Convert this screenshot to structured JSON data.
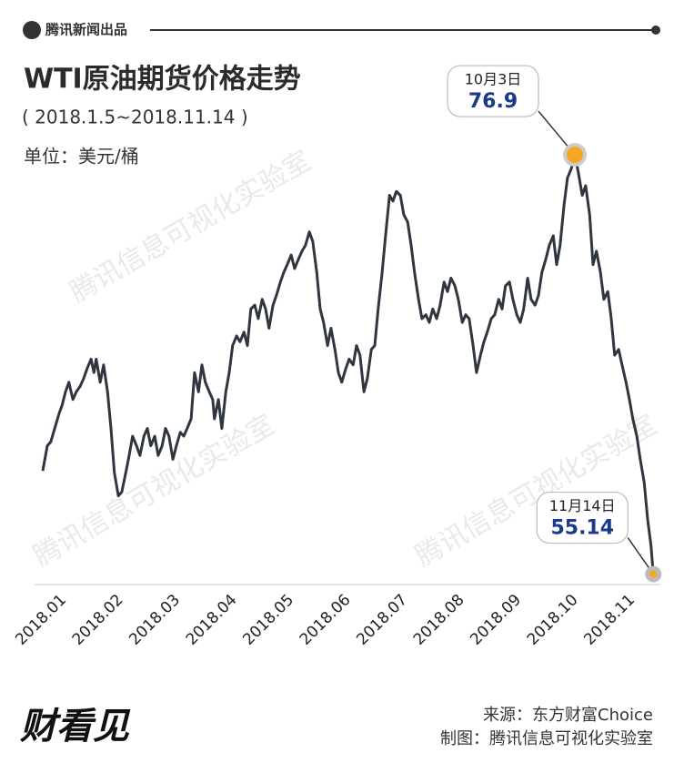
{
  "header": {
    "brand": "腾讯新闻出品"
  },
  "footer": {
    "logo": "财看见",
    "source": "来源：东方财富Choice",
    "credit": "制图：腾讯信息可视化实验室",
    "watermark": "腾讯信息可视化实验室"
  },
  "chart_data": {
    "type": "line",
    "title": "WTI原油期货价格走势",
    "subtitle": "( 2018.1.5~2018.11.14 )",
    "unit": "单位：美元/桶",
    "color": "#2f3640",
    "xlim": [
      0.6,
      11.6
    ],
    "ylim": [
      54.6,
      77.8
    ],
    "xticks": [
      {
        "value": 1,
        "label": "2018.01"
      },
      {
        "value": 2,
        "label": "2018.02"
      },
      {
        "value": 3,
        "label": "2018.03"
      },
      {
        "value": 4,
        "label": "2018.04"
      },
      {
        "value": 5,
        "label": "2018.05"
      },
      {
        "value": 6,
        "label": "2018.06"
      },
      {
        "value": 7,
        "label": "2018.07"
      },
      {
        "value": 8,
        "label": "2018.08"
      },
      {
        "value": 9,
        "label": "2018.09"
      },
      {
        "value": 10,
        "label": "2018.10"
      },
      {
        "value": 11,
        "label": "2018.11"
      }
    ],
    "x": [
      0.76,
      0.84,
      0.9,
      0.97,
      1.05,
      1.1,
      1.16,
      1.22,
      1.29,
      1.35,
      1.42,
      1.48,
      1.54,
      1.61,
      1.66,
      1.7,
      1.77,
      1.83,
      1.9,
      1.96,
      2.02,
      2.09,
      2.15,
      2.22,
      2.28,
      2.34,
      2.41,
      2.47,
      2.54,
      2.6,
      2.66,
      2.73,
      2.79,
      2.86,
      2.92,
      2.98,
      3.05,
      3.11,
      3.18,
      3.24,
      3.3,
      3.37,
      3.43,
      3.5,
      3.56,
      3.62,
      3.69,
      3.75,
      3.78,
      3.85,
      3.91,
      3.98,
      4.04,
      4.1,
      4.17,
      4.23,
      4.3,
      4.36,
      4.42,
      4.49,
      4.55,
      4.62,
      4.68,
      4.74,
      4.81,
      4.87,
      4.94,
      5.0,
      5.06,
      5.13,
      5.19,
      5.26,
      5.32,
      5.38,
      5.45,
      5.51,
      5.58,
      5.64,
      5.7,
      5.77,
      5.83,
      5.9,
      5.96,
      6.02,
      6.09,
      6.15,
      6.22,
      6.28,
      6.34,
      6.41,
      6.47,
      6.54,
      6.6,
      6.66,
      6.73,
      6.79,
      6.86,
      6.92,
      6.98,
      7.05,
      7.11,
      7.18,
      7.24,
      7.3,
      7.37,
      7.43,
      7.5,
      7.56,
      7.62,
      7.69,
      7.75,
      7.82,
      7.88,
      7.94,
      8.01,
      8.07,
      8.14,
      8.2,
      8.26,
      8.33,
      8.39,
      8.46,
      8.52,
      8.58,
      8.65,
      8.71,
      8.78,
      8.84,
      8.9,
      8.97,
      9.03,
      9.1,
      9.16,
      9.22,
      9.29,
      9.35,
      9.42,
      9.48,
      9.54,
      9.61,
      9.67,
      9.74,
      9.8,
      9.86,
      9.93,
      9.99,
      10.06,
      10.12,
      10.18,
      10.25,
      10.31,
      10.38,
      10.44,
      10.5,
      10.57,
      10.63,
      10.7,
      10.76,
      10.82,
      10.89,
      10.95,
      11.02,
      11.08,
      11.14,
      11.21,
      11.27,
      11.34,
      11.4,
      11.46,
      11.5
    ],
    "values": [
      60.5,
      61.8,
      62.0,
      62.7,
      63.5,
      63.9,
      64.6,
      65.1,
      64.2,
      64.6,
      64.9,
      65.3,
      65.8,
      66.3,
      65.6,
      66.3,
      65.1,
      66.0,
      64.6,
      62.7,
      60.4,
      59.2,
      59.4,
      60.4,
      61.3,
      62.3,
      61.8,
      61.3,
      62.3,
      62.7,
      61.8,
      62.3,
      61.3,
      61.8,
      62.7,
      62.3,
      61.1,
      61.8,
      62.5,
      62.3,
      62.7,
      63.2,
      65.6,
      64.6,
      66.0,
      65.1,
      64.6,
      64.2,
      63.2,
      64.2,
      62.7,
      64.6,
      65.6,
      67.0,
      67.5,
      67.2,
      67.7,
      67.0,
      68.9,
      69.1,
      68.4,
      69.4,
      68.9,
      67.9,
      69.1,
      69.6,
      70.3,
      70.8,
      71.2,
      71.7,
      71.0,
      71.5,
      71.9,
      72.2,
      72.9,
      72.4,
      70.8,
      68.9,
      68.2,
      67.0,
      67.9,
      66.8,
      65.6,
      65.1,
      65.8,
      66.3,
      66.0,
      67.0,
      66.5,
      64.6,
      65.3,
      66.8,
      67.0,
      68.9,
      70.8,
      72.7,
      74.8,
      74.5,
      75.0,
      74.8,
      73.8,
      73.4,
      72.2,
      70.8,
      69.4,
      68.4,
      68.6,
      68.2,
      68.9,
      68.4,
      69.1,
      70.3,
      69.8,
      70.5,
      70.1,
      69.4,
      68.2,
      68.6,
      68.4,
      67.0,
      65.6,
      66.5,
      67.2,
      67.7,
      68.4,
      68.6,
      69.4,
      68.9,
      70.1,
      70.3,
      69.4,
      68.6,
      68.2,
      68.9,
      70.5,
      69.4,
      69.1,
      69.6,
      70.8,
      71.5,
      72.2,
      72.7,
      71.2,
      72.2,
      74.3,
      75.7,
      76.2,
      76.9,
      76.0,
      74.8,
      75.3,
      73.8,
      71.2,
      71.9,
      70.8,
      69.4,
      69.8,
      68.4,
      66.5,
      66.8,
      66.0,
      65.1,
      64.2,
      63.2,
      62.3,
      61.1,
      59.9,
      58.0,
      56.6,
      55.14
    ],
    "annotations": [
      {
        "label": "10月3日",
        "x": 10.12,
        "value": 76.9
      },
      {
        "label": "11月14日",
        "x": 11.5,
        "value": 55.14
      }
    ]
  }
}
